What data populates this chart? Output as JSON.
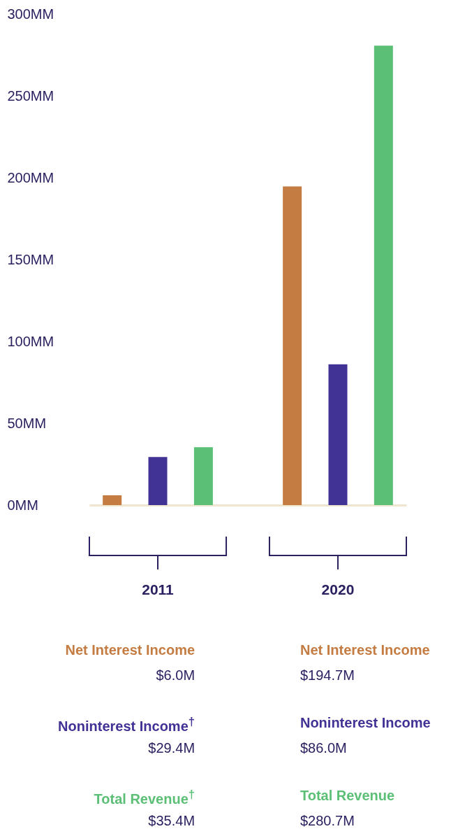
{
  "chart_data": {
    "type": "bar",
    "categories": [
      "2011",
      "2020"
    ],
    "series": [
      {
        "name": "Net Interest Income",
        "color": "#c47c42",
        "values": [
          6.0,
          194.7
        ]
      },
      {
        "name": "Noninterest Income",
        "color": "#413296",
        "values": [
          29.4,
          86.0
        ]
      },
      {
        "name": "Total Revenue",
        "color": "#5cbf76",
        "values": [
          35.4,
          280.7
        ]
      }
    ],
    "ylim": [
      0,
      300
    ],
    "yticks": [
      {
        "value": 0,
        "label": "0MM"
      },
      {
        "value": 50,
        "label": "50MM"
      },
      {
        "value": 100,
        "label": "100MM"
      },
      {
        "value": 150,
        "label": "150MM"
      },
      {
        "value": 200,
        "label": "200MM"
      },
      {
        "value": 250,
        "label": "250MM"
      },
      {
        "value": 300,
        "label": "300MM"
      }
    ],
    "annotations": [
      "Net Interest Income",
      "Noninterest Income$^{†}$",
      "Total Revenue$^{†}$",
      "$6.0M",
      "$29.4M",
      "$35.4M",
      "$194.7M",
      "$86.0M",
      "$280.7M"
    ],
    "grid": false,
    "legend": false
  }
}
